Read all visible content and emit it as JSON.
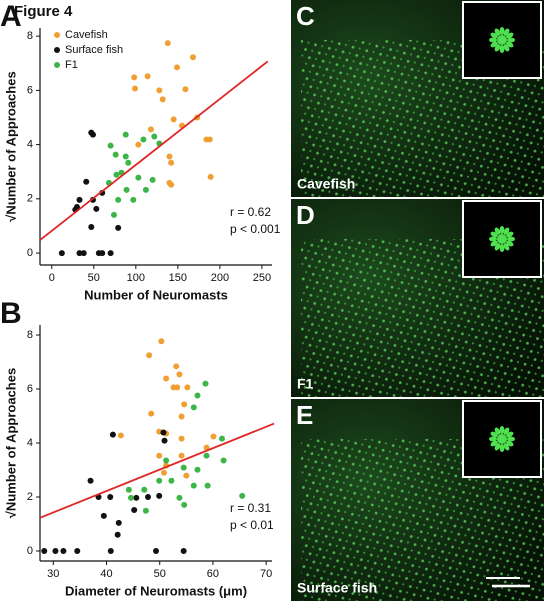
{
  "figure_title": "Figure 4",
  "chart_data": [
    {
      "type": "scatter",
      "panel": "A",
      "x_label": "Number of Neuromasts",
      "y_label": "√Number of Approaches",
      "xlim": [
        -14,
        262
      ],
      "xticks": [
        0,
        50,
        100,
        150,
        200,
        250
      ],
      "ylim": [
        -0.44,
        8.3
      ],
      "yticks": [
        0,
        2,
        4,
        6,
        8
      ],
      "grid": false,
      "legend": "upper left",
      "series": [
        {
          "name": "Cavefish",
          "color": "#f0a033",
          "x": [
            138,
            98,
            99,
            149,
            114,
            168,
            159,
            132,
            128,
            118,
            103,
            145,
            155,
            184,
            188,
            189,
            142,
            140,
            142,
            140,
            173
          ],
          "values": [
            7.74,
            6.48,
            6.07,
            6.85,
            6.52,
            7.22,
            6.04,
            5.67,
            6.0,
            4.56,
            4.0,
            4.93,
            4.7,
            4.19,
            4.19,
            2.81,
            2.52,
            3.56,
            3.33,
            2.59,
            5.0
          ]
        },
        {
          "name": "Surface fish",
          "color": "#111111",
          "x": [
            47,
            49,
            41,
            33,
            30,
            28,
            49,
            53,
            60,
            47,
            12,
            33,
            38,
            56,
            60,
            70,
            79
          ],
          "values": [
            4.44,
            4.37,
            2.63,
            1.96,
            1.7,
            1.6,
            1.96,
            1.63,
            2.22,
            0.96,
            0,
            0,
            0,
            0,
            0,
            0,
            0.93
          ]
        },
        {
          "name": "F1",
          "color": "#3db548",
          "x": [
            88,
            70,
            76,
            88,
            91,
            109,
            122,
            128,
            83,
            77,
            68,
            103,
            120,
            112,
            79,
            74,
            89,
            97
          ],
          "values": [
            4.37,
            3.96,
            3.63,
            3.56,
            3.33,
            4.19,
            4.3,
            4.04,
            2.96,
            2.89,
            2.59,
            2.78,
            2.7,
            2.33,
            1.96,
            1.41,
            2.33,
            1.96
          ]
        }
      ],
      "trend_line": {
        "color": "#e02626",
        "x": [
          -14,
          257
        ],
        "y": [
          0.48,
          7.07
        ]
      },
      "annotations": [
        "r = 0.62",
        "p < 0.001"
      ]
    },
    {
      "type": "scatter",
      "panel": "B",
      "x_label": "Diameter of Neuromasts (μm)",
      "y_label": "√Number of Approaches",
      "xlim": [
        27.5,
        71.1
      ],
      "xticks": [
        30,
        40,
        50,
        60,
        70
      ],
      "ylim": [
        -0.37,
        8.37
      ],
      "yticks": [
        0,
        2,
        4,
        6,
        8
      ],
      "grid": false,
      "series": [
        {
          "name": "Cavefish",
          "color": "#f0a033",
          "x": [
            50.3,
            48.0,
            53.1,
            53.7,
            51.2,
            52.6,
            53.3,
            55.2,
            54.6,
            48.4,
            54.1,
            51.2,
            49.9,
            42.7,
            54.1,
            60.1,
            58.8,
            54.1,
            49.9,
            51.2,
            50.8,
            55.0
          ],
          "values": [
            7.77,
            7.25,
            6.84,
            6.54,
            6.39,
            6.06,
            6.06,
            6.06,
            5.43,
            5.09,
            4.98,
            4.35,
            4.42,
            4.28,
            4.16,
            4.24,
            3.83,
            3.53,
            3.53,
            3.16,
            2.9,
            2.79
          ]
        },
        {
          "name": "Surface fish",
          "color": "#111111",
          "x": [
            41.2,
            50.7,
            50.9,
            37.0,
            38.5,
            40.7,
            39.5,
            42.3,
            45.2,
            45.6,
            47.8,
            49.9,
            28.3,
            30.4,
            31.9,
            34.5,
            40.8,
            49.3,
            54.5,
            42.1
          ],
          "values": [
            4.31,
            4.39,
            4.09,
            2.6,
            2.0,
            2.0,
            1.3,
            1.04,
            1.52,
            1.97,
            2.0,
            2.04,
            0,
            0,
            0,
            0,
            0,
            0,
            0,
            0.6
          ]
        },
        {
          "name": "F1",
          "color": "#3db548",
          "x": [
            58.6,
            57.1,
            56.4,
            61.7,
            58.8,
            62.0,
            57.1,
            54.5,
            51.2,
            52.2,
            49.9,
            53.7,
            54.6,
            56.4,
            59.0,
            65.5,
            47.1,
            44.2,
            44.6,
            47.4
          ],
          "values": [
            6.2,
            5.76,
            5.32,
            4.16,
            3.53,
            3.35,
            3.01,
            3.09,
            3.35,
            2.6,
            2.6,
            1.97,
            1.71,
            2.42,
            2.42,
            2.04,
            2.27,
            2.27,
            1.97,
            1.49
          ]
        }
      ],
      "trend_line": {
        "color": "#e02626",
        "x": [
          27.5,
          71.5
        ],
        "y": [
          1.23,
          4.72
        ]
      },
      "annotations": [
        "r = 0.31",
        "p < 0.01"
      ]
    }
  ],
  "images": [
    {
      "panel": "C",
      "caption": "Cavefish"
    },
    {
      "panel": "D",
      "caption": "F1"
    },
    {
      "panel": "E",
      "caption": "Surface fish"
    }
  ]
}
